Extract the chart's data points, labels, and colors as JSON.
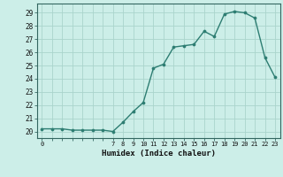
{
  "x": [
    0,
    1,
    2,
    3,
    4,
    5,
    6,
    7,
    8,
    9,
    10,
    11,
    12,
    13,
    14,
    15,
    16,
    17,
    18,
    19,
    20,
    21,
    22,
    23
  ],
  "y": [
    20.2,
    20.2,
    20.2,
    20.1,
    20.1,
    20.1,
    20.1,
    20.0,
    20.7,
    21.5,
    22.2,
    24.8,
    25.1,
    26.4,
    26.5,
    26.6,
    27.6,
    27.2,
    28.9,
    29.1,
    29.0,
    28.6,
    25.6,
    24.1
  ],
  "xticks": [
    0,
    7,
    8,
    9,
    10,
    11,
    12,
    13,
    14,
    15,
    16,
    17,
    18,
    19,
    20,
    21,
    22,
    23
  ],
  "yticks": [
    20,
    21,
    22,
    23,
    24,
    25,
    26,
    27,
    28,
    29
  ],
  "xlabel": "Humidex (Indice chaleur)",
  "ylim": [
    19.5,
    29.7
  ],
  "xlim": [
    -0.5,
    23.5
  ],
  "line_color": "#2d7d72",
  "marker_color": "#2d7d72",
  "bg_color": "#cceee8",
  "grid_color": "#aad4cc"
}
